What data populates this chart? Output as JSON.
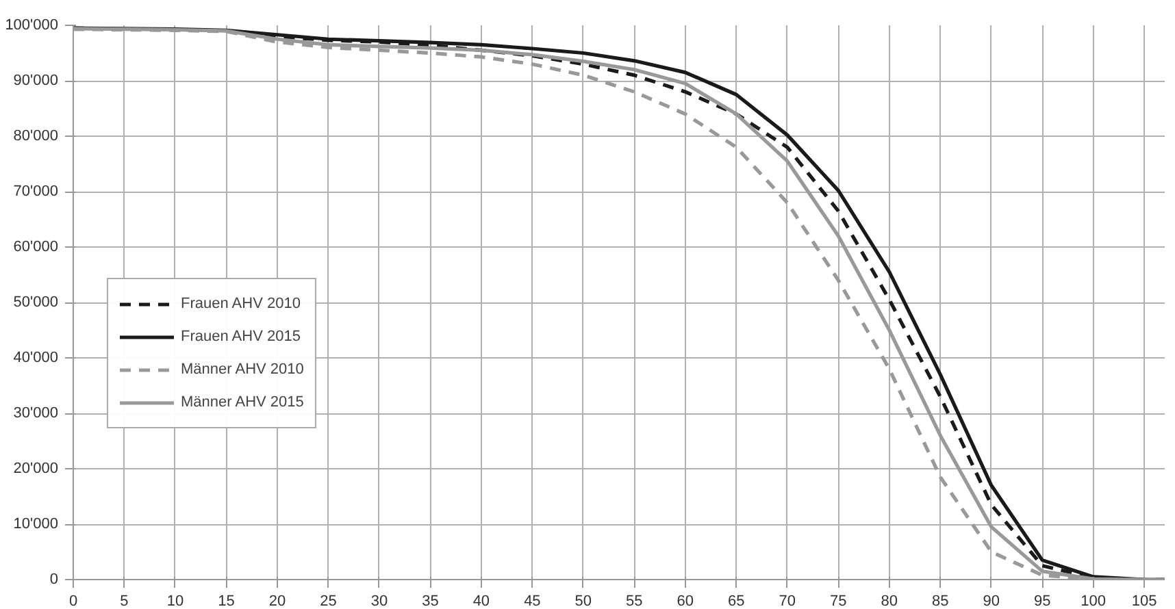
{
  "chart_data": {
    "type": "line",
    "xlim": [
      0,
      107
    ],
    "xticks": [
      0,
      5,
      10,
      15,
      20,
      25,
      30,
      35,
      40,
      45,
      50,
      55,
      60,
      65,
      70,
      75,
      80,
      85,
      90,
      95,
      100,
      105
    ],
    "ylim": [
      0,
      100000
    ],
    "yticks": [
      {
        "value": 0,
        "label": "0"
      },
      {
        "value": 10000,
        "label": "10'000"
      },
      {
        "value": 20000,
        "label": "20'000"
      },
      {
        "value": 30000,
        "label": "30'000"
      },
      {
        "value": 40000,
        "label": "40'000"
      },
      {
        "value": 50000,
        "label": "50'000"
      },
      {
        "value": 60000,
        "label": "60'000"
      },
      {
        "value": 70000,
        "label": "70'000"
      },
      {
        "value": 80000,
        "label": "80'000"
      },
      {
        "value": 90000,
        "label": "90'000"
      },
      {
        "value": 100000,
        "label": "100'000"
      }
    ],
    "grid": true,
    "legend": "left",
    "x": [
      0,
      5,
      10,
      15,
      20,
      25,
      30,
      35,
      40,
      45,
      50,
      55,
      60,
      65,
      70,
      75,
      80,
      85,
      90,
      95,
      100,
      105,
      107
    ],
    "series": [
      {
        "name": "Frauen AHV 2010",
        "color": "#1a1a1a",
        "line_style": "dashed",
        "values": [
          99500,
          99300,
          99200,
          99000,
          98000,
          97300,
          97000,
          96400,
          95500,
          94500,
          93000,
          91000,
          88000,
          84000,
          78000,
          66500,
          50500,
          33000,
          13500,
          2500,
          300,
          0,
          0
        ]
      },
      {
        "name": "Frauen AHV 2015",
        "color": "#1a1a1a",
        "line_style": "solid",
        "values": [
          99500,
          99400,
          99300,
          99100,
          98300,
          97500,
          97200,
          96900,
          96500,
          95800,
          95000,
          93600,
          91500,
          87500,
          80200,
          70200,
          55500,
          37000,
          17000,
          3500,
          500,
          0,
          0
        ]
      },
      {
        "name": "Männer AHV 2010",
        "color": "#999999",
        "line_style": "dashed",
        "values": [
          99300,
          99200,
          99100,
          98900,
          97000,
          96000,
          95500,
          95000,
          94300,
          93000,
          91000,
          88000,
          84000,
          78000,
          68000,
          54000,
          38000,
          18500,
          5000,
          800,
          0,
          0,
          0
        ]
      },
      {
        "name": "Männer AHV 2015",
        "color": "#999999",
        "line_style": "solid",
        "values": [
          99400,
          99300,
          99200,
          99000,
          97500,
          96500,
          96200,
          95900,
          95500,
          94700,
          93500,
          92000,
          89500,
          84000,
          75500,
          62000,
          45000,
          26000,
          9500,
          1500,
          100,
          0,
          0
        ]
      }
    ]
  }
}
